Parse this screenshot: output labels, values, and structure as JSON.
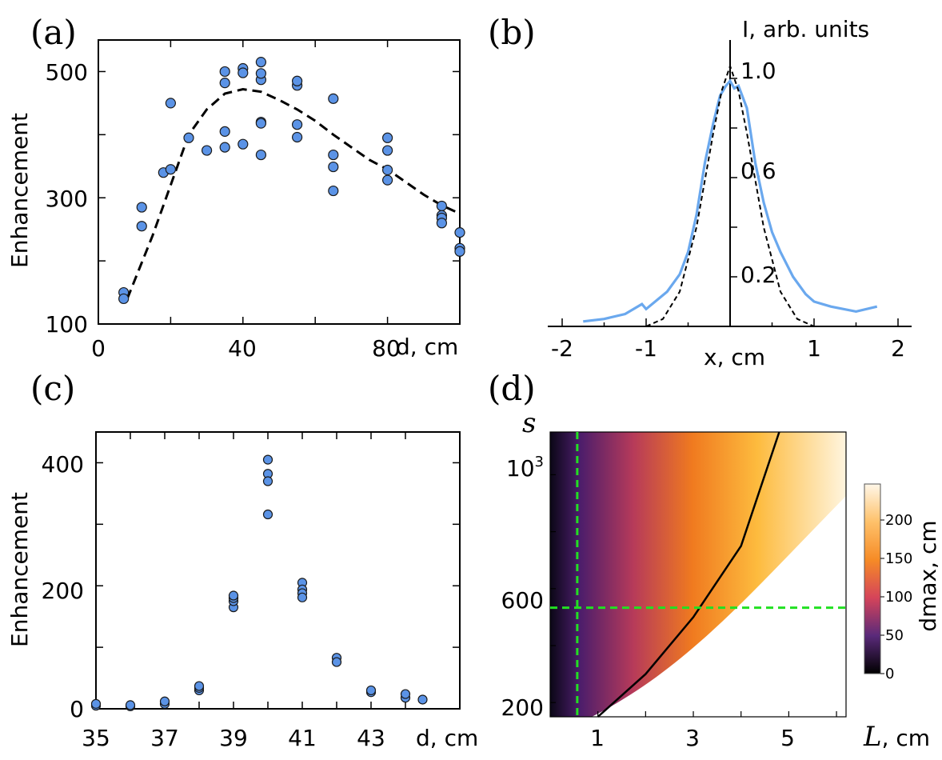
{
  "panels": {
    "a": "(a)",
    "b": "(b)",
    "c": "(c)",
    "d": "(d)"
  },
  "chart_data": [
    {
      "id": "a",
      "type": "scatter",
      "ylabel": "Enhancement",
      "xlabel": "d, cm",
      "xlim": [
        0,
        100
      ],
      "ylim": [
        100,
        550
      ],
      "xticks": [
        "0",
        "40",
        "80"
      ],
      "yticks": [
        "100",
        "300",
        "500"
      ],
      "points": [
        [
          7,
          150
        ],
        [
          7,
          140
        ],
        [
          12,
          285
        ],
        [
          12,
          255
        ],
        [
          18,
          340
        ],
        [
          20,
          345
        ],
        [
          20,
          450
        ],
        [
          25,
          395
        ],
        [
          30,
          375
        ],
        [
          35,
          380
        ],
        [
          35,
          482
        ],
        [
          35,
          500
        ],
        [
          35,
          405
        ],
        [
          40,
          505
        ],
        [
          40,
          385
        ],
        [
          40,
          498
        ],
        [
          45,
          487
        ],
        [
          45,
          420
        ],
        [
          45,
          418
        ],
        [
          45,
          497
        ],
        [
          45,
          515
        ],
        [
          45,
          368
        ],
        [
          55,
          478
        ],
        [
          55,
          485
        ],
        [
          55,
          396
        ],
        [
          55,
          416
        ],
        [
          65,
          457
        ],
        [
          65,
          368
        ],
        [
          65,
          349
        ],
        [
          65,
          311
        ],
        [
          80,
          395
        ],
        [
          80,
          375
        ],
        [
          80,
          344
        ],
        [
          80,
          328
        ],
        [
          95,
          287
        ],
        [
          95,
          272
        ],
        [
          95,
          268
        ],
        [
          95,
          260
        ],
        [
          100,
          245
        ],
        [
          100,
          220
        ],
        [
          100,
          215
        ]
      ],
      "fit_curve": [
        [
          8,
          140
        ],
        [
          15,
          240
        ],
        [
          20,
          320
        ],
        [
          25,
          400
        ],
        [
          30,
          440
        ],
        [
          35,
          465
        ],
        [
          40,
          472
        ],
        [
          45,
          468
        ],
        [
          50,
          455
        ],
        [
          55,
          440
        ],
        [
          60,
          422
        ],
        [
          65,
          400
        ],
        [
          70,
          380
        ],
        [
          75,
          360
        ],
        [
          80,
          345
        ],
        [
          85,
          325
        ],
        [
          90,
          305
        ],
        [
          95,
          288
        ],
        [
          100,
          275
        ]
      ]
    },
    {
      "id": "b",
      "type": "line",
      "ylabel": "I, arb. units",
      "xlabel": "x, cm",
      "xlim": [
        -2,
        2
      ],
      "ylim": [
        0,
        1.1
      ],
      "xticks": [
        "-2",
        "-1",
        "0",
        "1",
        "2"
      ],
      "yticks": [
        "0.2",
        "0.6",
        "1.0"
      ],
      "series": [
        {
          "values": [
            [
              -1.75,
              0.02
            ],
            [
              -1.5,
              0.03
            ],
            [
              -1.25,
              0.05
            ],
            [
              -1.05,
              0.09
            ],
            [
              -1.0,
              0.07
            ],
            [
              -0.75,
              0.14
            ],
            [
              -0.6,
              0.21
            ],
            [
              -0.5,
              0.3
            ],
            [
              -0.4,
              0.45
            ],
            [
              -0.3,
              0.66
            ],
            [
              -0.2,
              0.82
            ],
            [
              -0.12,
              0.93
            ],
            [
              -0.05,
              0.97
            ],
            [
              0.0,
              0.99
            ],
            [
              0.05,
              0.96
            ],
            [
              0.1,
              0.97
            ],
            [
              0.2,
              0.88
            ],
            [
              0.3,
              0.66
            ],
            [
              0.4,
              0.5
            ],
            [
              0.5,
              0.38
            ],
            [
              0.6,
              0.3
            ],
            [
              0.75,
              0.2
            ],
            [
              0.9,
              0.13
            ],
            [
              1.0,
              0.1
            ],
            [
              1.2,
              0.08
            ],
            [
              1.5,
              0.06
            ],
            [
              1.75,
              0.08
            ]
          ]
        },
        {
          "values": [
            [
              -1.0,
              0.0
            ],
            [
              -0.8,
              0.03
            ],
            [
              -0.6,
              0.14
            ],
            [
              -0.4,
              0.4
            ],
            [
              -0.2,
              0.78
            ],
            [
              -0.1,
              0.95
            ],
            [
              0.0,
              1.05
            ],
            [
              0.1,
              0.95
            ],
            [
              0.2,
              0.78
            ],
            [
              0.4,
              0.4
            ],
            [
              0.6,
              0.14
            ],
            [
              0.8,
              0.03
            ],
            [
              1.0,
              0.0
            ]
          ]
        }
      ]
    },
    {
      "id": "c",
      "type": "scatter",
      "ylabel": "Enhancement",
      "xlabel": "d, cm",
      "xlim": [
        35,
        44.5
      ],
      "ylim": [
        0,
        450
      ],
      "xticks": [
        "35",
        "37",
        "39",
        "41",
        "43"
      ],
      "yticks": [
        "0",
        "200",
        "400"
      ],
      "points": [
        [
          35,
          5
        ],
        [
          35,
          8
        ],
        [
          36,
          4
        ],
        [
          36,
          6
        ],
        [
          37,
          8
        ],
        [
          37,
          12
        ],
        [
          38,
          30
        ],
        [
          38,
          34
        ],
        [
          38,
          37
        ],
        [
          39,
          165
        ],
        [
          39,
          175
        ],
        [
          39,
          180
        ],
        [
          39,
          184
        ],
        [
          40,
          405
        ],
        [
          40,
          382
        ],
        [
          40,
          370
        ],
        [
          40,
          316
        ],
        [
          41,
          205
        ],
        [
          41,
          194
        ],
        [
          41,
          188
        ],
        [
          41,
          181
        ],
        [
          42,
          83
        ],
        [
          42,
          76
        ],
        [
          43,
          27
        ],
        [
          43,
          30
        ],
        [
          44,
          18
        ],
        [
          44,
          24
        ],
        [
          44.5,
          15
        ]
      ]
    },
    {
      "id": "d",
      "type": "heatmap",
      "xlabel": "L, cm",
      "ylabel": "s",
      "colorbar_label": "dmax, cm",
      "colorbar_ticks": [
        "0",
        "50",
        "100",
        "150",
        "200"
      ],
      "xticks": [
        "1",
        "3",
        "5"
      ],
      "yticks": [
        "200",
        "600",
        "10^3"
      ],
      "xlim": [
        0,
        6
      ],
      "ylim": [
        150,
        1150
      ],
      "guide_lines": {
        "vertical_x": 0.4,
        "horizontal_y": 550
      },
      "curve": [
        [
          1.0,
          150
        ],
        [
          2.0,
          300
        ],
        [
          3.0,
          500
        ],
        [
          4.0,
          750
        ],
        [
          4.8,
          1150
        ]
      ]
    }
  ]
}
